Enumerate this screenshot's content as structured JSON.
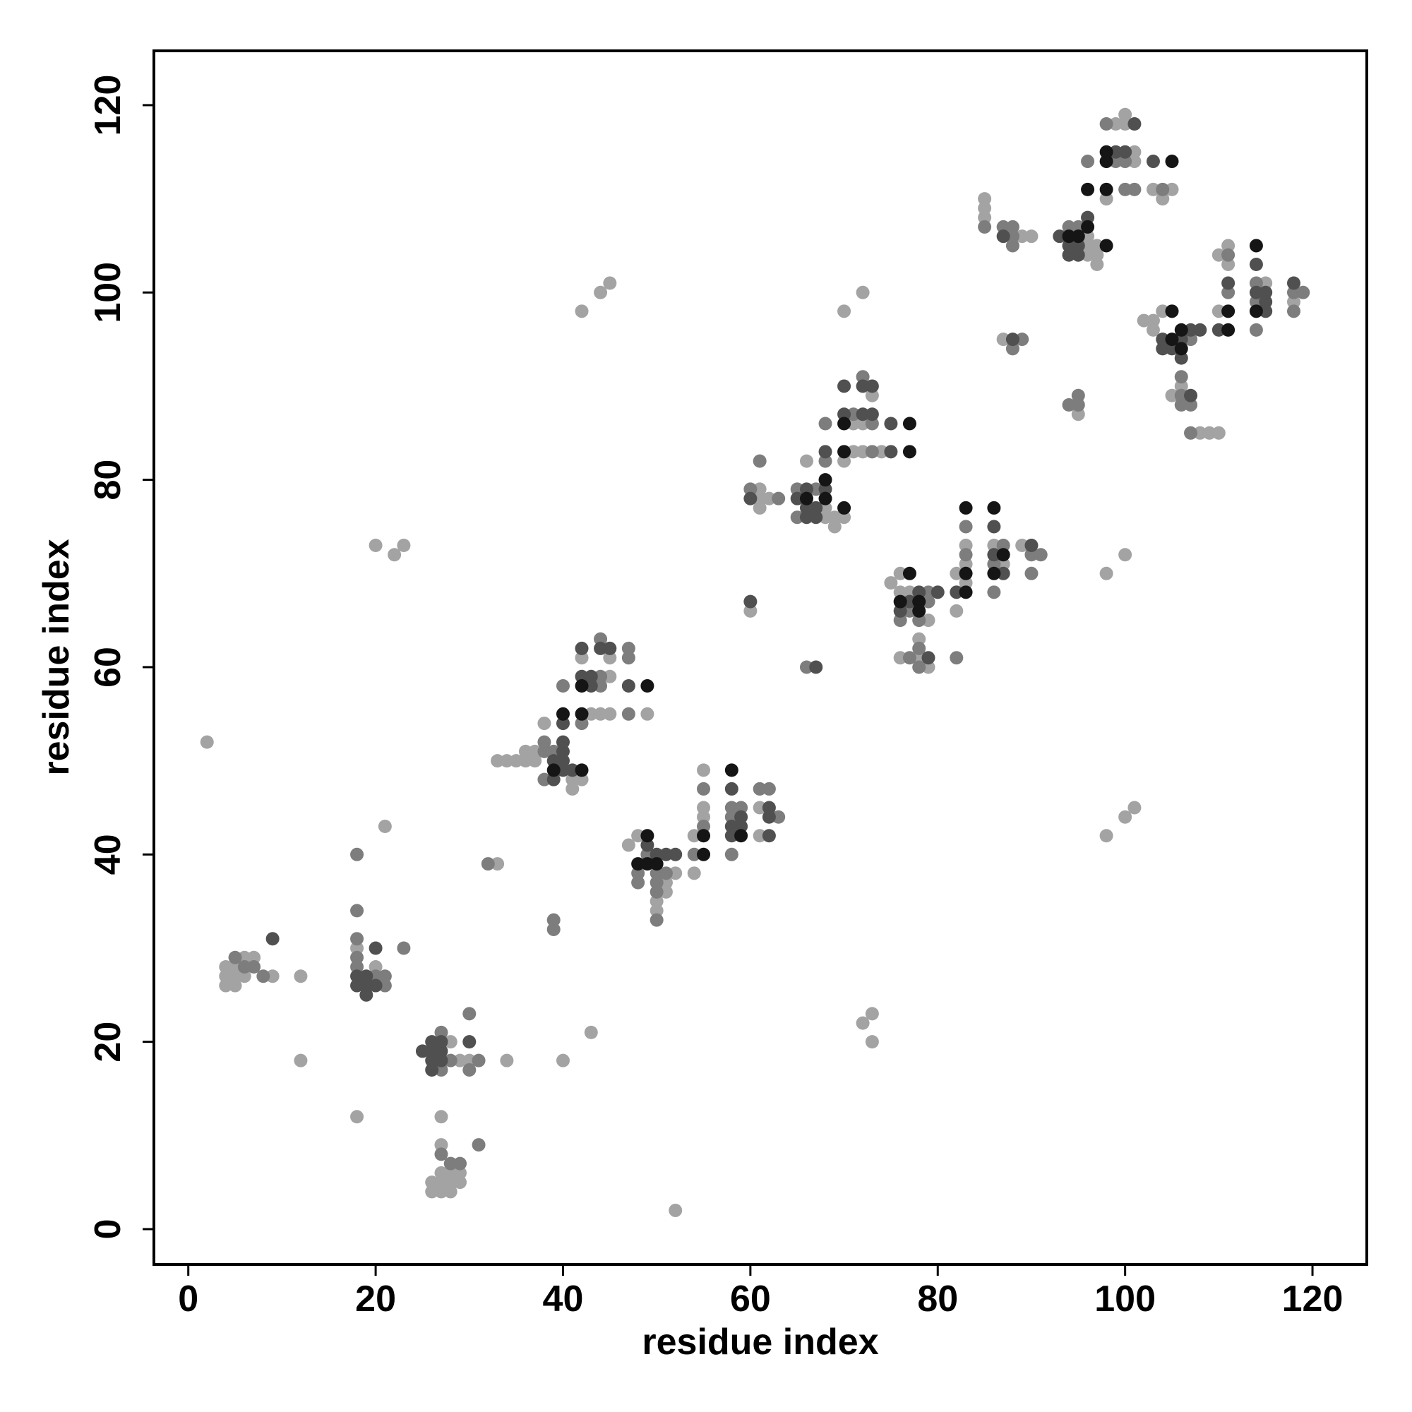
{
  "chart_data": {
    "type": "scatter",
    "xlabel": "residue index",
    "ylabel": "residue index",
    "xlim": [
      -3.67,
      125.8
    ],
    "ylim": [
      -3.77,
      125.8
    ],
    "xticks": [
      0,
      20,
      40,
      60,
      80,
      100,
      120
    ],
    "yticks": [
      0,
      20,
      40,
      60,
      80,
      100,
      120
    ],
    "series": [
      {
        "color": "#a3a3a3",
        "x": [
          4,
          4,
          4,
          5,
          5,
          5,
          6,
          6,
          7,
          9,
          12,
          12,
          2,
          20,
          21,
          18,
          18,
          28,
          29,
          30,
          34,
          40,
          43,
          27,
          27,
          26,
          26,
          27,
          27,
          28,
          27,
          28,
          29,
          29,
          28,
          52,
          33,
          20,
          22,
          23,
          33,
          34,
          35,
          36,
          37,
          36,
          37,
          38,
          41,
          41,
          42,
          42,
          43,
          44,
          45,
          45,
          45,
          49,
          47,
          48,
          50,
          50,
          51,
          51,
          52,
          54,
          54,
          55,
          55,
          55,
          61,
          61,
          61,
          61,
          61,
          62,
          66,
          68,
          68,
          69,
          69,
          70,
          60,
          70,
          71,
          71,
          72,
          72,
          73,
          74,
          70,
          72,
          42,
          44,
          45,
          75,
          76,
          76,
          77,
          78,
          78,
          79,
          79,
          76,
          82,
          82,
          83,
          83,
          83,
          86,
          87,
          89,
          72,
          73,
          73,
          98,
          100,
          101,
          98,
          100,
          85,
          85,
          85,
          89,
          90,
          96,
          96,
          96,
          97,
          97,
          97,
          87,
          95,
          98,
          99,
          100,
          100,
          101,
          101,
          103,
          104,
          105,
          102,
          103,
          103,
          104,
          105,
          106,
          108,
          109,
          110,
          110,
          110,
          111,
          111,
          115,
          118
        ],
        "values": [
          26,
          27,
          28,
          26,
          27,
          28,
          27,
          29,
          29,
          27,
          27,
          18,
          52,
          28,
          43,
          12,
          30,
          20,
          18,
          18,
          18,
          18,
          21,
          12,
          9,
          5,
          4,
          4,
          5,
          4,
          6,
          6,
          6,
          5,
          5,
          2,
          39,
          73,
          72,
          73,
          50,
          50,
          50,
          50,
          50,
          51,
          51,
          54,
          48,
          47,
          48,
          61,
          55,
          55,
          59,
          55,
          61,
          55,
          41,
          42,
          35,
          34,
          37,
          36,
          38,
          38,
          42,
          49,
          45,
          44,
          45,
          42,
          79,
          78,
          77,
          78,
          82,
          77,
          76,
          75,
          76,
          76,
          66,
          82,
          86,
          83,
          86,
          83,
          89,
          83,
          98,
          100,
          98,
          100,
          101,
          69,
          70,
          68,
          68,
          63,
          61,
          65,
          60,
          61,
          66,
          70,
          73,
          71,
          69,
          73,
          71,
          73,
          22,
          23,
          20,
          42,
          44,
          45,
          70,
          72,
          110,
          109,
          108,
          106,
          106,
          106,
          105,
          104,
          105,
          103,
          104,
          95,
          87,
          110,
          118,
          119,
          118,
          115,
          114,
          111,
          110,
          111,
          97,
          97,
          96,
          98,
          89,
          90,
          85,
          85,
          85,
          104,
          98,
          105,
          103,
          101,
          99
        ]
      },
      {
        "color": "#7d7d7d",
        "x": [
          5,
          6,
          7,
          8,
          18,
          18,
          18,
          20,
          21,
          21,
          23,
          18,
          18,
          27,
          27,
          28,
          30,
          30,
          31,
          27,
          28,
          29,
          31,
          32,
          39,
          39,
          38,
          38,
          38,
          39,
          42,
          44,
          44,
          44,
          47,
          47,
          47,
          40,
          48,
          48,
          49,
          50,
          50,
          50,
          50,
          51,
          54,
          55,
          55,
          58,
          58,
          58,
          59,
          61,
          62,
          63,
          60,
          61,
          63,
          65,
          65,
          67,
          68,
          66,
          68,
          71,
          72,
          73,
          73,
          76,
          77,
          78,
          78,
          78,
          79,
          79,
          77,
          82,
          83,
          83,
          86,
          86,
          87,
          90,
          90,
          91,
          85,
          87,
          88,
          88,
          88,
          94,
          95,
          88,
          89,
          95,
          95,
          94,
          96,
          98,
          99,
          100,
          100,
          101,
          104,
          106,
          106,
          106,
          107,
          107,
          107,
          111,
          111,
          114,
          114,
          114,
          118,
          118,
          119
        ],
        "values": [
          29,
          28,
          28,
          27,
          31,
          29,
          28,
          27,
          27,
          26,
          30,
          34,
          40,
          17,
          21,
          18,
          17,
          23,
          18,
          8,
          7,
          7,
          9,
          39,
          33,
          32,
          51,
          52,
          48,
          51,
          54,
          58,
          59,
          63,
          62,
          61,
          55,
          58,
          38,
          37,
          40,
          38,
          37,
          36,
          33,
          38,
          40,
          47,
          43,
          45,
          44,
          40,
          45,
          47,
          47,
          44,
          79,
          82,
          78,
          79,
          76,
          79,
          82,
          60,
          86,
          87,
          91,
          86,
          83,
          65,
          66,
          65,
          62,
          60,
          68,
          67,
          61,
          61,
          75,
          72,
          71,
          68,
          73,
          72,
          70,
          72,
          107,
          107,
          107,
          106,
          105,
          107,
          107,
          94,
          95,
          89,
          88,
          88,
          114,
          118,
          114,
          114,
          111,
          111,
          111,
          91,
          89,
          88,
          95,
          88,
          85,
          104,
          100,
          101,
          99,
          96,
          100,
          98,
          100
        ]
      },
      {
        "color": "#505050",
        "x": [
          9,
          18,
          18,
          19,
          19,
          20,
          19,
          20,
          25,
          26,
          26,
          26,
          26,
          27,
          27,
          27,
          30,
          39,
          39,
          40,
          40,
          40,
          40,
          40,
          41,
          42,
          42,
          43,
          43,
          44,
          45,
          47,
          49,
          50,
          51,
          52,
          58,
          58,
          58,
          59,
          59,
          62,
          62,
          62,
          60,
          65,
          66,
          66,
          67,
          67,
          68,
          60,
          67,
          70,
          70,
          72,
          72,
          73,
          73,
          75,
          75,
          76,
          77,
          78,
          79,
          80,
          82,
          86,
          86,
          87,
          90,
          87,
          93,
          94,
          94,
          95,
          95,
          96,
          88,
          99,
          100,
          101,
          103,
          104,
          104,
          105,
          106,
          106,
          107,
          107,
          108,
          110,
          111,
          114,
          114,
          115,
          115,
          115,
          118,
          66,
          68
        ],
        "values": [
          31,
          27,
          26,
          27,
          26,
          26,
          25,
          30,
          19,
          19,
          20,
          18,
          17,
          18,
          19,
          20,
          20,
          48,
          50,
          49,
          50,
          51,
          52,
          54,
          49,
          59,
          62,
          59,
          58,
          62,
          62,
          58,
          41,
          40,
          40,
          40,
          47,
          43,
          42,
          44,
          43,
          45,
          44,
          42,
          78,
          78,
          77,
          76,
          77,
          76,
          79,
          67,
          60,
          87,
          90,
          90,
          87,
          90,
          87,
          86,
          83,
          66,
          67,
          68,
          61,
          68,
          68,
          75,
          72,
          70,
          73,
          106,
          106,
          105,
          104,
          105,
          104,
          108,
          95,
          115,
          115,
          118,
          114,
          95,
          94,
          94,
          95,
          93,
          96,
          89,
          96,
          96,
          101,
          103,
          100,
          100,
          99,
          98,
          101,
          79,
          83
        ]
      },
      {
        "color": "#151515",
        "x": [
          39,
          42,
          40,
          42,
          42,
          49,
          48,
          49,
          49,
          50,
          55,
          55,
          58,
          59,
          66,
          68,
          68,
          70,
          70,
          70,
          77,
          77,
          76,
          77,
          78,
          78,
          83,
          83,
          83,
          86,
          86,
          87,
          94,
          95,
          98,
          96,
          96,
          98,
          98,
          98,
          105,
          105,
          105,
          106,
          106,
          111,
          111,
          114,
          114
        ],
        "values": [
          49,
          49,
          55,
          55,
          58,
          58,
          39,
          39,
          42,
          39,
          42,
          40,
          49,
          42,
          78,
          80,
          78,
          77,
          86,
          83,
          86,
          83,
          67,
          70,
          67,
          66,
          77,
          70,
          68,
          77,
          70,
          72,
          106,
          106,
          105,
          107,
          111,
          115,
          114,
          111,
          114,
          98,
          95,
          96,
          94,
          98,
          96,
          105,
          98
        ]
      }
    ]
  }
}
